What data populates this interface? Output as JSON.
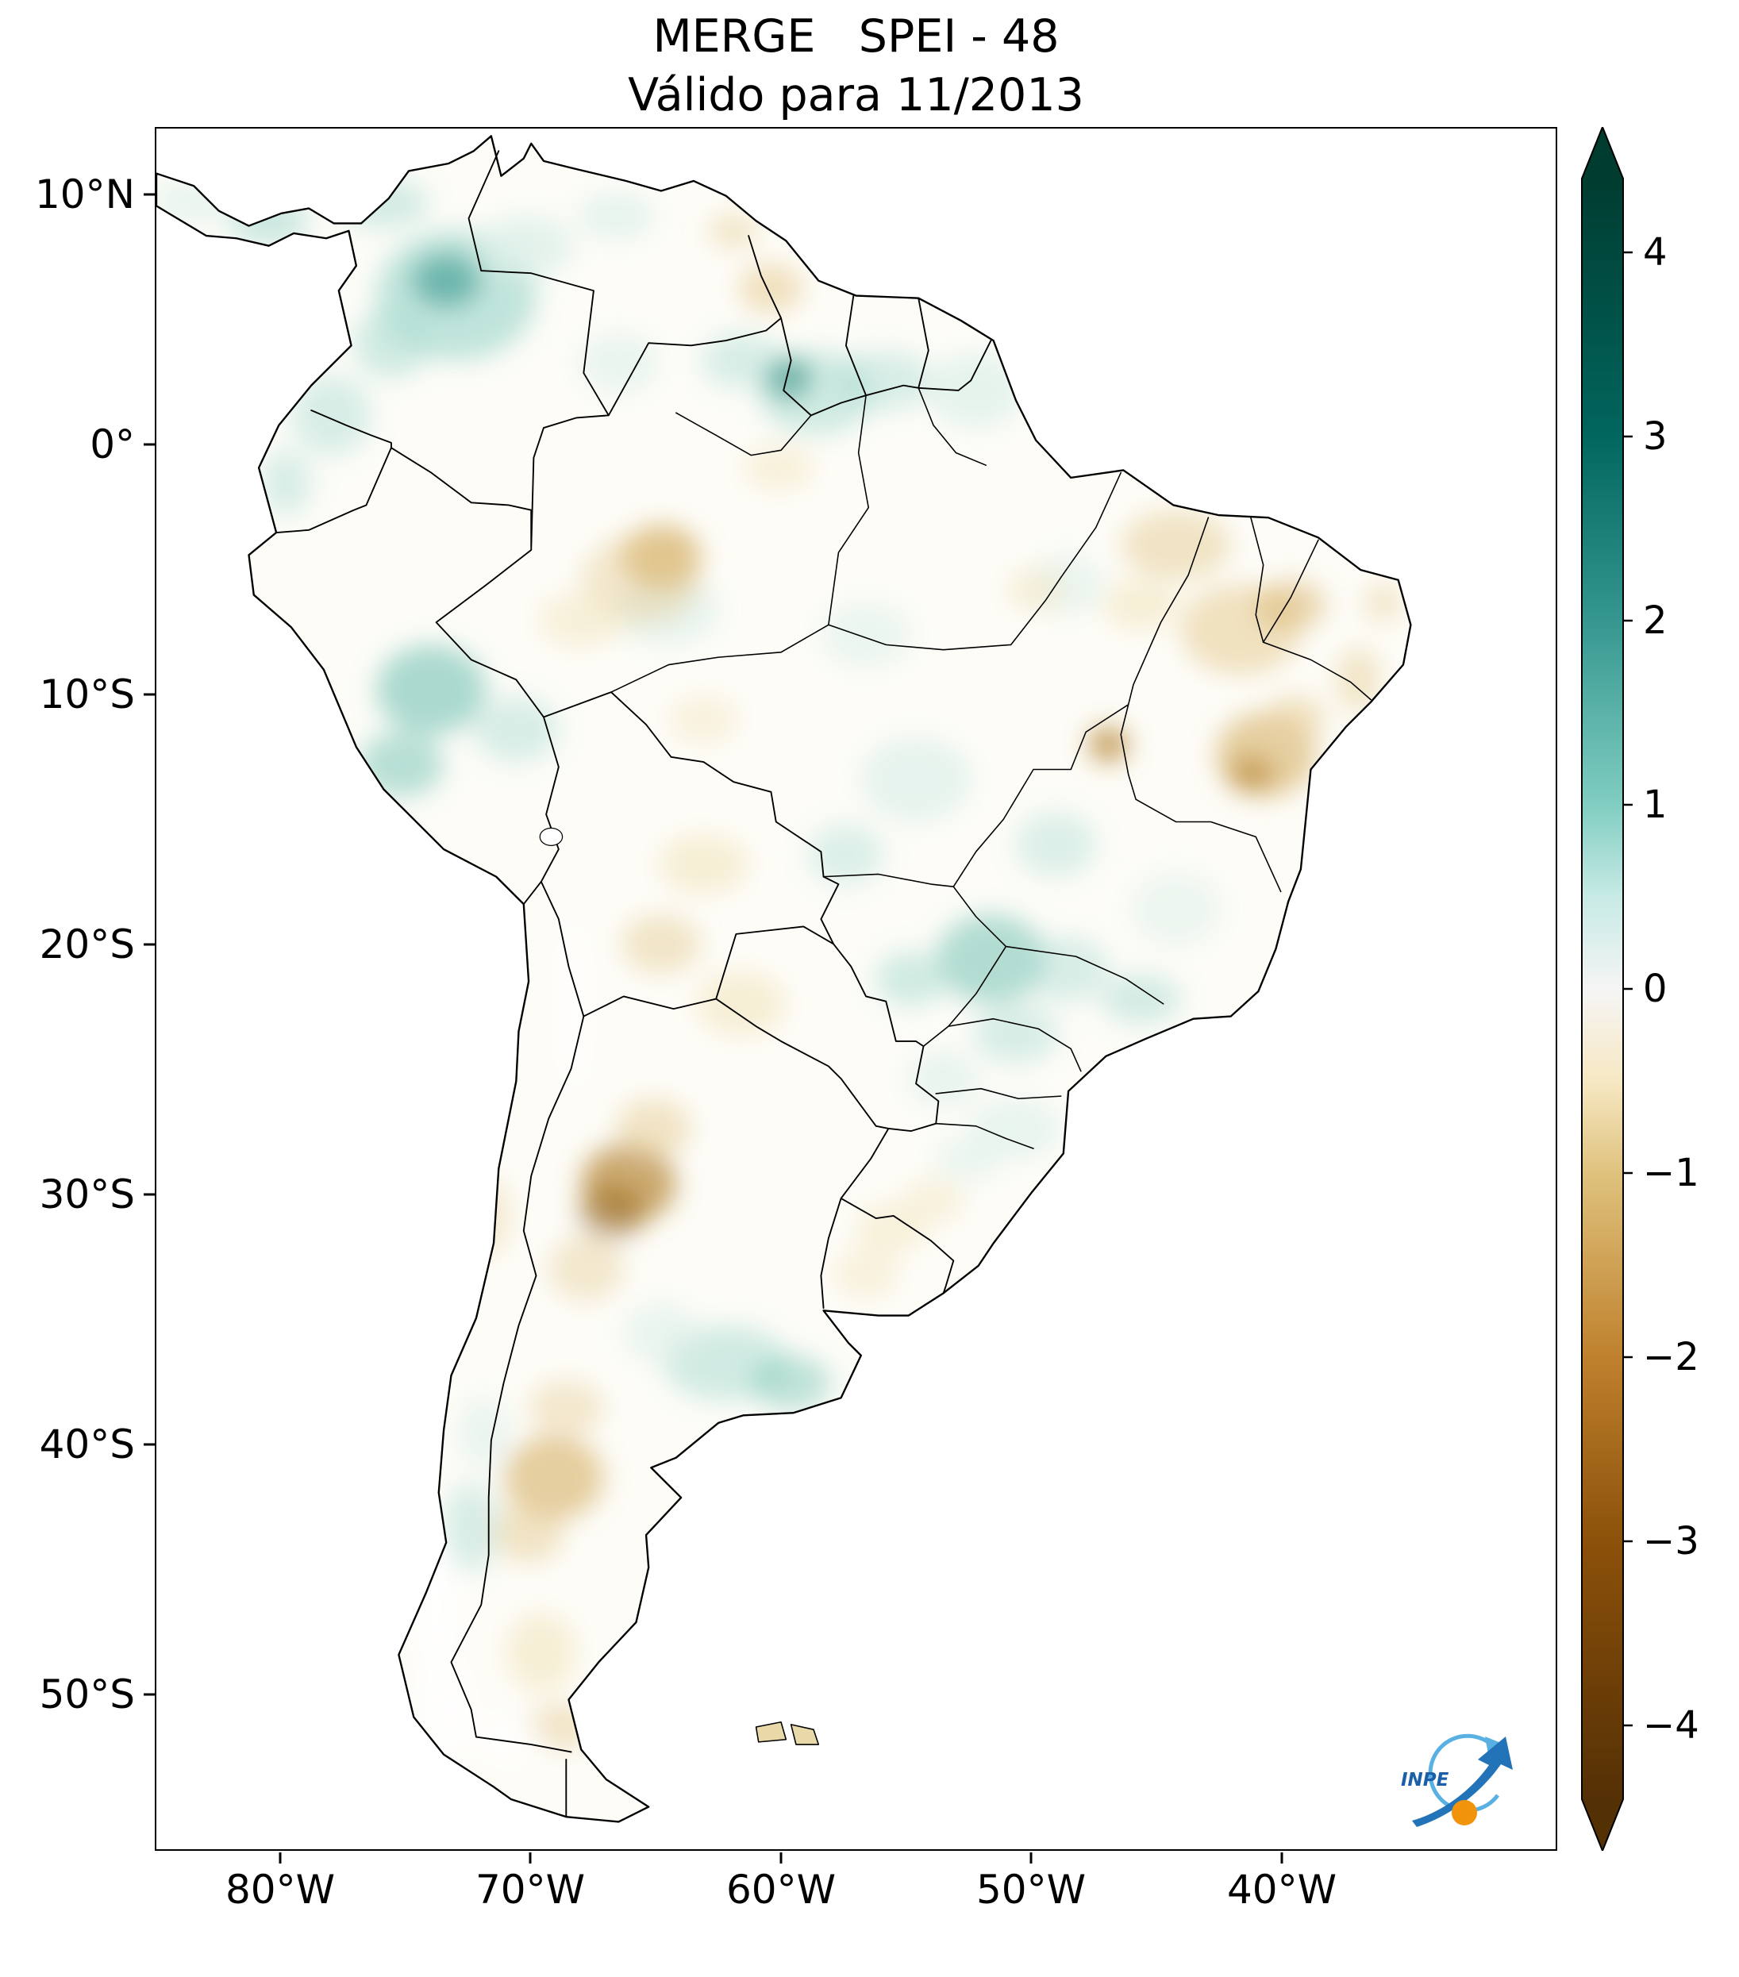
{
  "title": {
    "line1": "MERGE   SPEI - 48",
    "line2": "Válido para 11/2013"
  },
  "axes": {
    "lat_ticks": [
      "10°N",
      "0°",
      "10°S",
      "20°S",
      "30°S",
      "40°S",
      "50°S"
    ],
    "lon_ticks": [
      "80°W",
      "70°W",
      "60°W",
      "50°W",
      "40°W"
    ]
  },
  "colorbar": {
    "ticks": [
      "4",
      "3",
      "2",
      "1",
      "0",
      "−1",
      "−2",
      "−3",
      "−4"
    ],
    "gradient_top_to_bottom": [
      "#003c30",
      "#01665e",
      "#35978f",
      "#80cdc1",
      "#c7eae5",
      "#f5f5f5",
      "#f6e8c3",
      "#dfc27d",
      "#bf812d",
      "#8c510a",
      "#543005"
    ]
  },
  "logo": {
    "text": "INPE",
    "arrow_color": "#2273b8",
    "orbit_color": "#58b0e3",
    "sphere_color": "#f2930c"
  },
  "chart_data": {
    "type": "heatmap",
    "title": "MERGE   SPEI - 48",
    "subtitle": "Válido para 11/2013",
    "colorbar_ticks": [
      4,
      3,
      2,
      1,
      0,
      -1,
      -2,
      -3,
      -4
    ],
    "colorbar_range": [
      -4,
      4
    ],
    "lat_ticks_deg": [
      10,
      0,
      -10,
      -20,
      -30,
      -40,
      -50
    ],
    "lon_ticks_deg": [
      -80,
      -70,
      -60,
      -50,
      -40
    ],
    "legend_position": "right",
    "spei_blobs": [
      [
        -73.0,
        6.0,
        3.2,
        2.6,
        "#abdcd2",
        0.75
      ],
      [
        -73.4,
        6.6,
        1.4,
        1.1,
        "#35978f",
        0.6
      ],
      [
        -75.6,
        4.1,
        1.5,
        1.4,
        "#abdcd2",
        0.55
      ],
      [
        -70.2,
        8.0,
        1.9,
        1.2,
        "#ddf0ea",
        0.8
      ],
      [
        -75.9,
        9.7,
        1.8,
        1.0,
        "#abdcd2",
        0.5
      ],
      [
        -78.0,
        1.2,
        1.6,
        1.6,
        "#abdcd2",
        0.45
      ],
      [
        -79.8,
        -1.5,
        1.0,
        1.3,
        "#abdcd2",
        0.45
      ],
      [
        -80.5,
        9.0,
        1.6,
        1.0,
        "#abdcd2",
        0.6
      ],
      [
        -83.5,
        9.8,
        1.6,
        0.9,
        "#ddf0ea",
        0.6
      ],
      [
        -59.7,
        2.7,
        0.95,
        0.85,
        "#0f6f63",
        0.85
      ],
      [
        -58.6,
        2.1,
        2.3,
        1.7,
        "#abdcd2",
        0.55
      ],
      [
        -55.9,
        2.6,
        2.0,
        1.2,
        "#abdcd2",
        0.45
      ],
      [
        -61.6,
        3.4,
        1.6,
        1.1,
        "#abdcd2",
        0.45
      ],
      [
        -52.2,
        2.2,
        1.9,
        1.5,
        "#ddf0ea",
        0.75
      ],
      [
        -66.6,
        9.2,
        1.5,
        0.9,
        "#ddf0ea",
        0.7
      ],
      [
        -66.5,
        3.3,
        1.6,
        1.2,
        "#ddf0ea",
        0.6
      ],
      [
        -74.0,
        -9.8,
        2.2,
        1.8,
        "#74c3b4",
        0.6
      ],
      [
        -75.2,
        -12.8,
        1.7,
        1.3,
        "#74c3b4",
        0.5
      ],
      [
        -70.6,
        -11.4,
        1.7,
        1.3,
        "#abdcd2",
        0.45
      ],
      [
        -64.6,
        -6.6,
        2.1,
        1.4,
        "#ddf0ea",
        0.65
      ],
      [
        -54.6,
        -13.4,
        2.2,
        1.7,
        "#ddf0ea",
        0.7
      ],
      [
        -57.4,
        -16.4,
        1.5,
        1.2,
        "#abdcd2",
        0.4
      ],
      [
        -51.6,
        -20.6,
        2.2,
        1.8,
        "#74c3b4",
        0.55
      ],
      [
        -54.8,
        -21.4,
        1.4,
        1.1,
        "#abdcd2",
        0.55
      ],
      [
        -48.6,
        -21.0,
        1.7,
        1.3,
        "#abdcd2",
        0.45
      ],
      [
        -45.6,
        -22.2,
        1.6,
        1.0,
        "#abdcd2",
        0.5
      ],
      [
        -50.6,
        -23.6,
        1.7,
        1.2,
        "#abdcd2",
        0.45
      ],
      [
        -53.5,
        -25.4,
        1.4,
        1.1,
        "#ddf0ea",
        0.65
      ],
      [
        -50.6,
        -27.4,
        1.8,
        1.2,
        "#ddf0ea",
        0.65
      ],
      [
        -52.5,
        -28.6,
        1.3,
        0.9,
        "#ddf0ea",
        0.55
      ],
      [
        -44.2,
        -18.6,
        1.8,
        1.5,
        "#ddf0ea",
        0.5
      ],
      [
        -49.0,
        -16.0,
        1.6,
        1.3,
        "#abdcd2",
        0.4
      ],
      [
        -62.2,
        -36.8,
        2.5,
        1.5,
        "#abdcd2",
        0.55
      ],
      [
        -59.6,
        -37.6,
        1.6,
        1.1,
        "#74c3b4",
        0.45
      ],
      [
        -64.8,
        -35.6,
        1.5,
        1.2,
        "#ddf0ea",
        0.6
      ],
      [
        -72.4,
        -43.4,
        1.1,
        1.8,
        "#abdcd2",
        0.45
      ],
      [
        -71.9,
        -39.6,
        1.0,
        1.4,
        "#ddf0ea",
        0.6
      ],
      [
        -48.6,
        -5.6,
        1.5,
        1.2,
        "#ddf0ea",
        0.6
      ],
      [
        -56.6,
        -7.6,
        1.8,
        1.3,
        "#ddf0ea",
        0.55
      ],
      [
        -64.8,
        -4.5,
        1.6,
        1.3,
        "#d2a858",
        0.7
      ],
      [
        -65.6,
        -5.4,
        2.4,
        1.8,
        "#e7cf9a",
        0.45
      ],
      [
        -68.0,
        -7.0,
        1.7,
        1.1,
        "#f4e9c9",
        0.65
      ],
      [
        -60.4,
        6.3,
        1.3,
        1.0,
        "#e7cf9a",
        0.6
      ],
      [
        -61.9,
        8.6,
        1.0,
        0.7,
        "#e7cf9a",
        0.5
      ],
      [
        -60.1,
        -0.9,
        1.4,
        0.9,
        "#f4e9c9",
        0.65
      ],
      [
        -44.2,
        -4.0,
        2.2,
        1.4,
        "#e7cf9a",
        0.55
      ],
      [
        -41.6,
        -7.4,
        2.4,
        1.8,
        "#e7cf9a",
        0.6
      ],
      [
        -39.6,
        -6.4,
        1.4,
        1.0,
        "#d2a858",
        0.45
      ],
      [
        -40.6,
        -12.4,
        2.0,
        1.7,
        "#d2a858",
        0.55
      ],
      [
        -41.2,
        -13.2,
        0.9,
        0.7,
        "#b07c22",
        0.55
      ],
      [
        -39.4,
        -11.0,
        1.2,
        1.0,
        "#e7cf9a",
        0.55
      ],
      [
        -46.9,
        -12.0,
        0.8,
        0.7,
        "#b07c22",
        0.7
      ],
      [
        -45.6,
        -6.4,
        1.5,
        1.0,
        "#f4e9c9",
        0.75
      ],
      [
        -49.8,
        -5.8,
        1.2,
        0.9,
        "#f4e9c9",
        0.6
      ],
      [
        -63.1,
        -16.8,
        1.8,
        1.2,
        "#f4e9c9",
        0.75
      ],
      [
        -64.8,
        -20.0,
        1.6,
        1.2,
        "#e7cf9a",
        0.5
      ],
      [
        -61.6,
        -22.4,
        1.8,
        1.3,
        "#f4e9c9",
        0.75
      ],
      [
        -66.1,
        -29.6,
        1.9,
        1.6,
        "#b07c22",
        0.65
      ],
      [
        -66.8,
        -30.8,
        1.3,
        1.1,
        "#8a5a10",
        0.45
      ],
      [
        -65.1,
        -27.4,
        1.5,
        1.2,
        "#e7cf9a",
        0.55
      ],
      [
        -67.8,
        -33.0,
        1.5,
        1.3,
        "#e7cf9a",
        0.45
      ],
      [
        -69.1,
        -41.4,
        2.0,
        1.7,
        "#d2a858",
        0.55
      ],
      [
        -70.1,
        -43.6,
        1.4,
        1.2,
        "#e7cf9a",
        0.55
      ],
      [
        -68.6,
        -38.6,
        1.5,
        1.1,
        "#e7cf9a",
        0.45
      ],
      [
        -69.6,
        -48.4,
        1.4,
        1.6,
        "#f4e9c9",
        0.75
      ],
      [
        -68.9,
        -51.4,
        1.3,
        0.9,
        "#e7cf9a",
        0.55
      ],
      [
        -55.6,
        -31.4,
        1.4,
        1.0,
        "#f4e9c9",
        0.65
      ],
      [
        -53.9,
        -30.3,
        1.2,
        0.9,
        "#f4e9c9",
        0.6
      ],
      [
        -56.6,
        -33.2,
        1.3,
        1.0,
        "#f4e9c9",
        0.6
      ],
      [
        -63.1,
        -11.0,
        1.4,
        1.0,
        "#f4e9c9",
        0.55
      ],
      [
        -36.9,
        -9.4,
        0.9,
        1.3,
        "#e7cf9a",
        0.5
      ],
      [
        -35.9,
        -6.3,
        0.8,
        0.8,
        "#e7cf9a",
        0.45
      ],
      [
        -71.9,
        -30.9,
        1.1,
        1.6,
        "#e7cf9a",
        0.4
      ],
      [
        -73.8,
        -46.6,
        0.9,
        2.6,
        "#ffffff",
        0.9
      ],
      [
        -73.4,
        -50.6,
        1.0,
        1.9,
        "#ffffff",
        0.85
      ],
      [
        -68.3,
        -22.5,
        0.7,
        3.3,
        "#ffffff",
        0.6
      ],
      [
        -70.9,
        -51.9,
        1.5,
        1.0,
        "#ffffff",
        0.6
      ]
    ]
  }
}
